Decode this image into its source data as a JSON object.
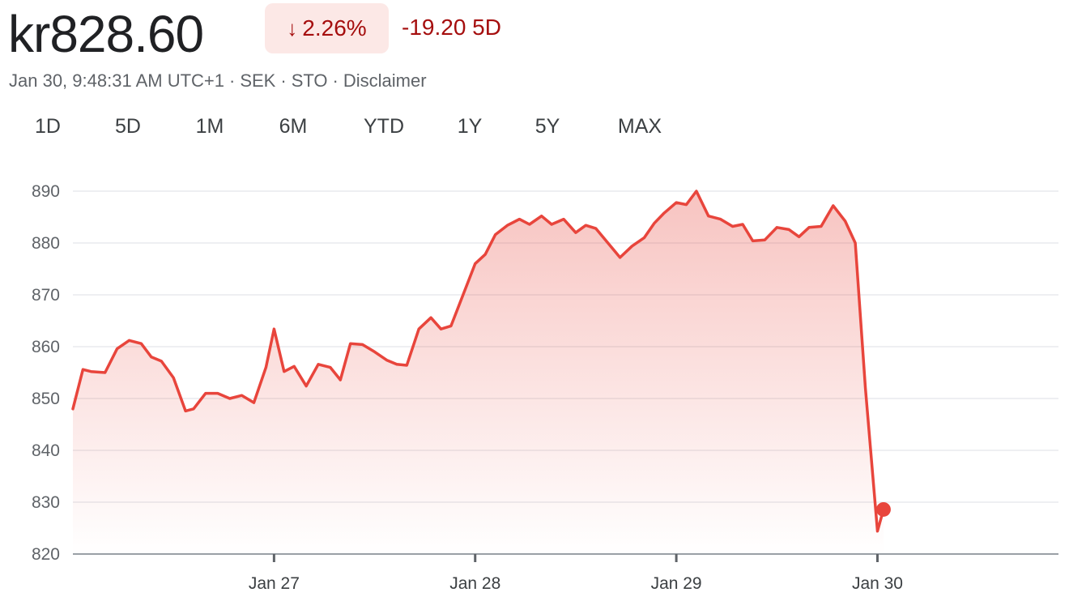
{
  "header": {
    "price": "kr828.60",
    "change_pct": "2.26%",
    "change_arrow_icon": "arrow-down-icon",
    "change_abs": "-19.20 5D",
    "timestamp": "Jan 30, 9:48:31 AM UTC+1",
    "currency": "SEK",
    "exchange": "STO",
    "disclaimer": "Disclaimer",
    "separator": "·"
  },
  "tabs": [
    {
      "label": "1D",
      "active": false
    },
    {
      "label": "5D",
      "active": true
    },
    {
      "label": "1M",
      "active": false
    },
    {
      "label": "6M",
      "active": false
    },
    {
      "label": "YTD",
      "active": false
    },
    {
      "label": "1Y",
      "active": false
    },
    {
      "label": "5Y",
      "active": false
    },
    {
      "label": "MAX",
      "active": false
    }
  ],
  "colors": {
    "line": "#e8453c",
    "accent": "#1a73e8",
    "negative": "#a50e0e"
  },
  "chart_data": {
    "type": "line",
    "ylim": [
      820,
      890
    ],
    "yticks": [
      890,
      880,
      870,
      860,
      850,
      840,
      830,
      820
    ],
    "xlim": [
      0,
      4.9
    ],
    "xticks": [
      {
        "value": 1,
        "label": "Jan 27"
      },
      {
        "value": 2,
        "label": "Jan 28"
      },
      {
        "value": 3,
        "label": "Jan 29"
      },
      {
        "value": 4,
        "label": "Jan 30"
      }
    ],
    "grid": true,
    "last_point": {
      "x": 4.03,
      "y": 828.6
    },
    "x": [
      0,
      0.05,
      0.09,
      0.16,
      0.22,
      0.28,
      0.34,
      0.39,
      0.44,
      0.5,
      0.56,
      0.6,
      0.66,
      0.72,
      0.78,
      0.84,
      0.9,
      0.96,
      1.0,
      1.05,
      1.1,
      1.16,
      1.22,
      1.28,
      1.33,
      1.38,
      1.44,
      1.5,
      1.56,
      1.61,
      1.66,
      1.72,
      1.78,
      1.83,
      1.88,
      1.94,
      2.0,
      2.05,
      2.1,
      2.16,
      2.22,
      2.27,
      2.33,
      2.38,
      2.44,
      2.5,
      2.55,
      2.6,
      2.66,
      2.72,
      2.78,
      2.84,
      2.89,
      2.94,
      3.0,
      3.05,
      3.1,
      3.16,
      3.22,
      3.28,
      3.33,
      3.38,
      3.44,
      3.5,
      3.56,
      3.61,
      3.66,
      3.72,
      3.78,
      3.84,
      3.89,
      3.94,
      4.0,
      4.03
    ],
    "y": [
      848,
      855.6,
      855.2,
      855,
      859.6,
      861.2,
      860.6,
      858,
      857.2,
      854,
      847.6,
      848,
      851,
      851,
      850,
      850.6,
      849.2,
      856,
      863.4,
      855.2,
      856.2,
      852.4,
      856.6,
      856,
      853.6,
      860.6,
      860.4,
      859,
      857.4,
      856.6,
      856.4,
      863.4,
      865.6,
      863.4,
      864,
      870,
      876,
      877.8,
      881.6,
      883.4,
      884.6,
      883.6,
      885.2,
      883.6,
      884.6,
      882,
      883.4,
      882.8,
      880,
      877.2,
      879.4,
      881,
      883.8,
      885.8,
      887.8,
      887.4,
      890,
      885.2,
      884.6,
      883.2,
      883.6,
      880.4,
      880.6,
      883,
      882.6,
      881.2,
      883,
      883.2,
      887.2,
      884.2,
      880,
      852,
      824.4,
      828.6
    ]
  }
}
